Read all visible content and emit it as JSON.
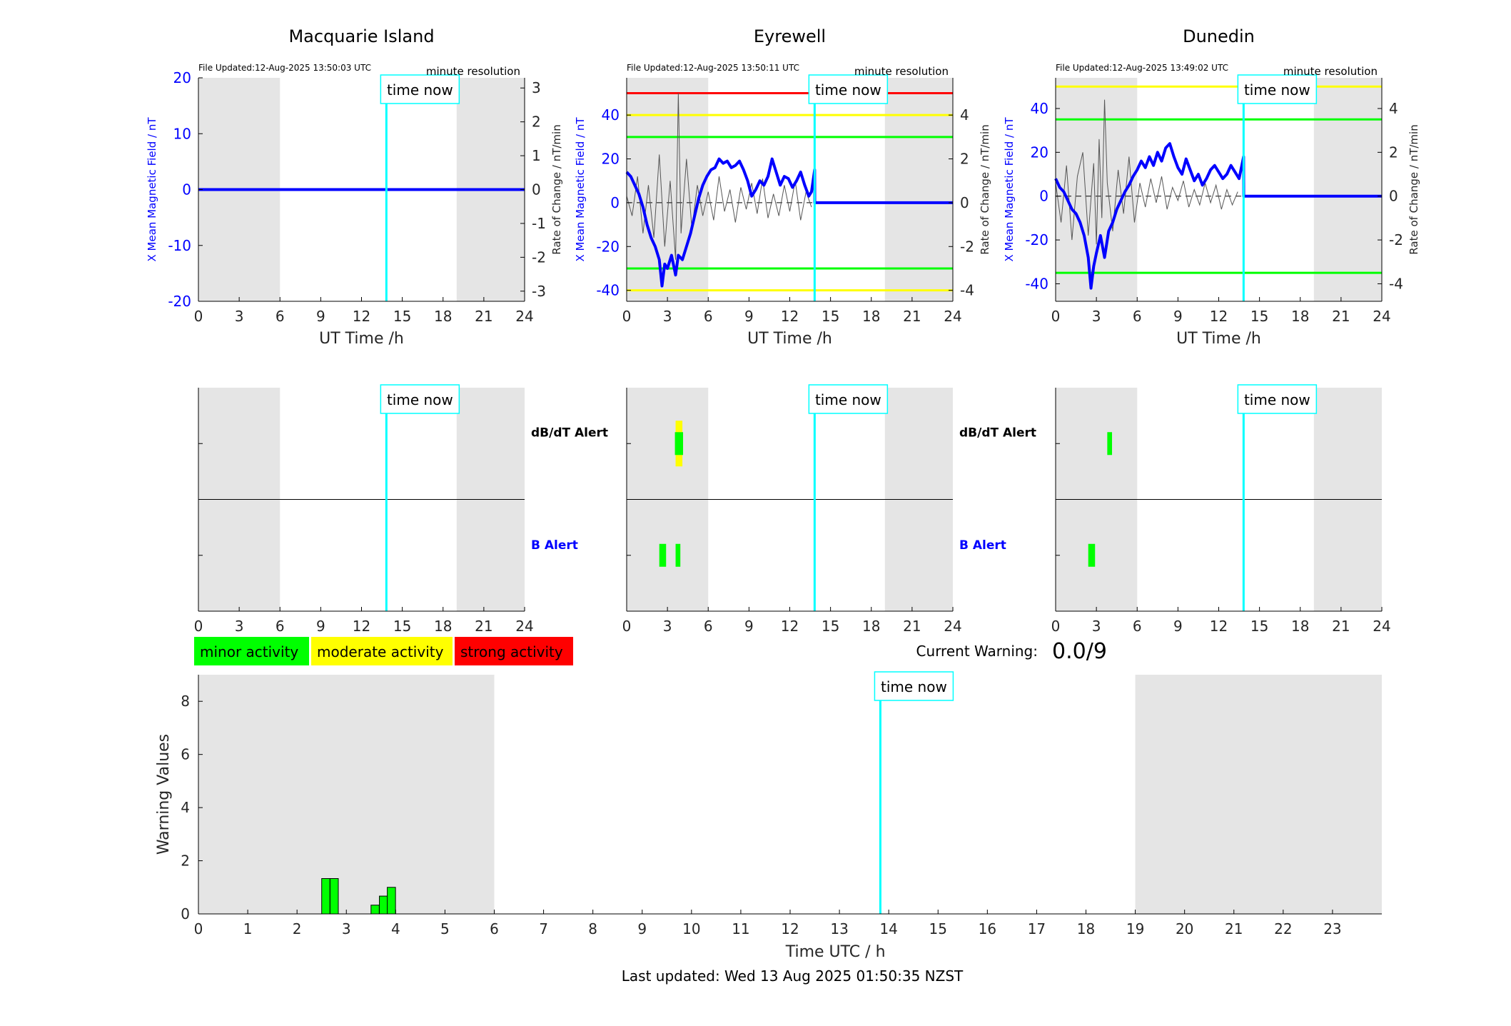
{
  "footer": {
    "last_updated": "Last updated: Wed 13 Aug 2025 01:50:35 NZST"
  },
  "current_warning": {
    "label": "Current Warning:",
    "value": "0.0/9"
  },
  "legend": [
    {
      "label": "minor activity",
      "color": "#00ff00"
    },
    {
      "label": "moderate activity",
      "color": "#ffff00"
    },
    {
      "label": "strong activity",
      "color": "#ff0000"
    }
  ],
  "colors": {
    "field": "#0000ff",
    "time_now": "#00ffff",
    "night": "#e5e5e5",
    "green": "#00ff00",
    "yellow": "#ffff00",
    "red": "#ff0000"
  },
  "chart_data": [
    {
      "id": "macquarie",
      "type": "line",
      "title": "Macquarie Island",
      "file_updated": "File Updated:12-Aug-2025 13:50:03 UTC",
      "resolution": "minute resolution",
      "time_now_label": "time now",
      "xlabel": "UT Time /h",
      "ylabel_left": "X Mean Magnetic Field / nT",
      "ylabel_right": "Rate of Change / nT/min",
      "xlim": [
        0,
        24
      ],
      "xticks": [
        0,
        3,
        6,
        9,
        12,
        15,
        18,
        21,
        24
      ],
      "ylim_left": [
        -20,
        20
      ],
      "yticks_left": [
        -20,
        -10,
        0,
        10,
        20
      ],
      "ylim_right": [
        -3.3,
        3.3
      ],
      "yticks_right": [
        -3,
        -2,
        -1,
        0,
        1,
        2,
        3
      ],
      "night": [
        [
          0,
          6
        ],
        [
          19,
          24
        ]
      ],
      "time_now": 13.83,
      "threshold_lines": [],
      "x_field": [
        0,
        24
      ],
      "field": [
        0,
        0
      ],
      "x_rate": [
        0,
        24
      ],
      "rate": [
        0,
        0
      ]
    },
    {
      "id": "eyrewell",
      "type": "line",
      "title": "Eyrewell",
      "file_updated": "File Updated:12-Aug-2025 13:50:11 UTC",
      "resolution": "minute resolution",
      "time_now_label": "time now",
      "xlabel": "UT Time /h",
      "ylabel_left": "X Mean Magnetic Field / nT",
      "ylabel_right": "Rate of Change / nT/min",
      "xlim": [
        0,
        24
      ],
      "xticks": [
        0,
        3,
        6,
        9,
        12,
        15,
        18,
        21,
        24
      ],
      "ylim_left": [
        -45,
        57
      ],
      "yticks_left": [
        -40,
        -20,
        0,
        20,
        40
      ],
      "ylim_right": [
        -4.5,
        5.7
      ],
      "yticks_right": [
        -4,
        -2,
        0,
        2,
        4
      ],
      "night": [
        [
          0,
          6
        ],
        [
          19,
          24
        ]
      ],
      "time_now": 13.83,
      "threshold_lines": [
        {
          "y": 50,
          "color": "red"
        },
        {
          "y": 40,
          "color": "yellow"
        },
        {
          "y": 30,
          "color": "green"
        },
        {
          "y": -30,
          "color": "green"
        },
        {
          "y": -40,
          "color": "yellow"
        }
      ],
      "x_field": [
        0,
        0.3,
        0.6,
        0.9,
        1.2,
        1.5,
        1.8,
        2.1,
        2.4,
        2.6,
        2.8,
        3.0,
        3.3,
        3.6,
        3.8,
        4.1,
        4.4,
        4.7,
        5.0,
        5.3,
        5.6,
        5.9,
        6.2,
        6.5,
        6.8,
        7.1,
        7.4,
        7.7,
        8.0,
        8.3,
        8.6,
        8.9,
        9.2,
        9.5,
        9.8,
        10.1,
        10.4,
        10.7,
        11.0,
        11.3,
        11.6,
        11.9,
        12.2,
        12.5,
        12.8,
        13.1,
        13.4,
        13.6,
        13.83,
        13.84,
        24
      ],
      "field": [
        14,
        12,
        8,
        4,
        -2,
        -10,
        -16,
        -20,
        -26,
        -38,
        -28,
        -30,
        -24,
        -33,
        -24,
        -26,
        -20,
        -14,
        -6,
        2,
        8,
        12,
        15,
        16,
        20,
        18,
        19,
        16,
        17,
        19,
        15,
        10,
        3,
        6,
        10,
        8,
        12,
        20,
        14,
        8,
        12,
        11,
        7,
        10,
        14,
        8,
        3,
        5,
        15,
        0,
        0
      ],
      "x_rate": [
        0,
        0.4,
        0.8,
        1.2,
        1.6,
        2.0,
        2.4,
        2.8,
        3.2,
        3.6,
        3.8,
        4.0,
        4.4,
        4.8,
        5.2,
        5.6,
        6.0,
        6.4,
        6.8,
        7.2,
        7.6,
        8.0,
        8.4,
        8.8,
        9.2,
        9.6,
        10.0,
        10.4,
        10.8,
        11.2,
        11.6,
        12.0,
        12.4,
        12.8,
        13.2,
        13.6
      ],
      "rate": [
        0.3,
        -0.6,
        1.2,
        -1.4,
        0.8,
        -1.6,
        2.2,
        -2.0,
        1.0,
        -2.6,
        5.0,
        -1.4,
        2.0,
        -1.2,
        0.8,
        -0.6,
        0.5,
        -0.8,
        1.2,
        -0.4,
        0.6,
        -0.9,
        0.7,
        -0.3,
        0.9,
        -0.5,
        1.1,
        -0.7,
        0.4,
        -0.6,
        0.8,
        -0.4,
        1.0,
        -0.8,
        0.5,
        -0.2
      ]
    },
    {
      "id": "dunedin",
      "type": "line",
      "title": "Dunedin",
      "file_updated": "File Updated:12-Aug-2025 13:49:02 UTC",
      "resolution": "minute resolution",
      "time_now_label": "time now",
      "xlabel": "UT Time /h",
      "ylabel_left": "X Mean Magnetic Field / nT",
      "ylabel_right": "Rate of Change / nT/min",
      "xlim": [
        0,
        24
      ],
      "xticks": [
        0,
        3,
        6,
        9,
        12,
        15,
        18,
        21,
        24
      ],
      "ylim_left": [
        -48,
        54
      ],
      "yticks_left": [
        -40,
        -20,
        0,
        20,
        40
      ],
      "ylim_right": [
        -4.8,
        5.4
      ],
      "yticks_right": [
        -4,
        -2,
        0,
        2,
        4
      ],
      "night": [
        [
          0,
          6
        ],
        [
          19,
          24
        ]
      ],
      "time_now": 13.83,
      "threshold_lines": [
        {
          "y": 50,
          "color": "yellow"
        },
        {
          "y": 35,
          "color": "green"
        },
        {
          "y": -35,
          "color": "green"
        }
      ],
      "x_field": [
        0,
        0.3,
        0.6,
        0.9,
        1.2,
        1.5,
        1.8,
        2.1,
        2.4,
        2.6,
        2.8,
        3.0,
        3.3,
        3.6,
        3.9,
        4.2,
        4.5,
        4.8,
        5.1,
        5.4,
        5.7,
        6.0,
        6.3,
        6.6,
        6.9,
        7.2,
        7.5,
        7.8,
        8.1,
        8.4,
        8.7,
        9.0,
        9.3,
        9.6,
        9.9,
        10.2,
        10.5,
        10.8,
        11.1,
        11.4,
        11.7,
        12.0,
        12.3,
        12.6,
        12.9,
        13.2,
        13.5,
        13.83,
        13.84,
        24
      ],
      "field": [
        8,
        4,
        2,
        -2,
        -6,
        -8,
        -12,
        -18,
        -28,
        -42,
        -32,
        -26,
        -18,
        -28,
        -16,
        -12,
        -6,
        -2,
        2,
        5,
        9,
        12,
        16,
        13,
        18,
        14,
        20,
        16,
        22,
        24,
        18,
        13,
        10,
        17,
        12,
        7,
        10,
        5,
        8,
        12,
        14,
        11,
        8,
        10,
        14,
        11,
        8,
        18,
        0,
        0
      ],
      "x_rate": [
        0,
        0.4,
        0.8,
        1.2,
        1.6,
        2.0,
        2.4,
        2.8,
        3.0,
        3.2,
        3.4,
        3.6,
        3.8,
        4.2,
        4.6,
        5.0,
        5.4,
        5.8,
        6.2,
        6.6,
        7.0,
        7.4,
        7.8,
        8.2,
        8.6,
        9.0,
        9.4,
        9.8,
        10.2,
        10.6,
        11.0,
        11.4,
        11.8,
        12.2,
        12.6,
        13.0,
        13.4
      ],
      "rate": [
        0.6,
        -1.2,
        1.4,
        -2.0,
        0.9,
        2.0,
        -1.8,
        1.5,
        -2.2,
        2.6,
        -1.0,
        4.4,
        0.6,
        -1.6,
        1.2,
        -0.8,
        1.8,
        -1.2,
        0.6,
        -0.5,
        0.8,
        -0.3,
        0.9,
        -0.6,
        0.4,
        -0.2,
        0.7,
        -0.5,
        0.3,
        -0.4,
        0.6,
        -0.3,
        0.5,
        -0.6,
        0.3,
        -0.4,
        0.2
      ]
    },
    {
      "id": "macquarie-alerts",
      "type": "bar",
      "labels": [
        "dB/dT Alert",
        "B Alert"
      ],
      "time_now_label": "time now",
      "xlim": [
        0,
        24
      ],
      "xticks": [
        0,
        3,
        6,
        9,
        12,
        15,
        18,
        21,
        24
      ],
      "night": [
        [
          0,
          6
        ],
        [
          19,
          24
        ]
      ],
      "time_now": 13.83,
      "dbdt_alerts": [],
      "b_alerts": []
    },
    {
      "id": "eyrewell-alerts",
      "type": "bar",
      "labels": [
        "dB/dT Alert",
        "B Alert"
      ],
      "time_now_label": "time now",
      "xlim": [
        0,
        24
      ],
      "xticks": [
        0,
        3,
        6,
        9,
        12,
        15,
        18,
        21,
        24
      ],
      "night": [
        [
          0,
          6
        ],
        [
          19,
          24
        ]
      ],
      "time_now": 13.83,
      "dbdt_alerts": [
        {
          "t0": 3.6,
          "t1": 4.1,
          "level": 2,
          "color": "yellow"
        },
        {
          "t0": 3.55,
          "t1": 4.15,
          "level": 1,
          "color": "green"
        }
      ],
      "b_alerts": [
        {
          "t0": 2.4,
          "t1": 2.9,
          "level": 1,
          "color": "green"
        },
        {
          "t0": 3.6,
          "t1": 3.95,
          "level": 1,
          "color": "green"
        }
      ]
    },
    {
      "id": "dunedin-alerts",
      "type": "bar",
      "labels": [
        "dB/dT Alert",
        "B Alert"
      ],
      "time_now_label": "time now",
      "xlim": [
        0,
        24
      ],
      "xticks": [
        0,
        3,
        6,
        9,
        12,
        15,
        18,
        21,
        24
      ],
      "night": [
        [
          0,
          6
        ],
        [
          19,
          24
        ]
      ],
      "time_now": 13.83,
      "dbdt_alerts": [
        {
          "t0": 3.8,
          "t1": 4.15,
          "level": 1,
          "color": "green"
        }
      ],
      "b_alerts": [
        {
          "t0": 2.4,
          "t1": 2.9,
          "level": 1,
          "color": "green"
        }
      ]
    },
    {
      "id": "warning-values",
      "type": "bar",
      "xlabel": "Time UTC / h",
      "ylabel": "Warning Values",
      "time_now_label": "time now",
      "xlim": [
        0,
        24
      ],
      "xticks": [
        0,
        1,
        2,
        3,
        4,
        5,
        6,
        7,
        8,
        9,
        10,
        11,
        12,
        13,
        14,
        15,
        16,
        17,
        18,
        19,
        20,
        21,
        22,
        23
      ],
      "ylim": [
        0,
        9
      ],
      "yticks": [
        0,
        2,
        4,
        6,
        8
      ],
      "night": [
        [
          0,
          6
        ],
        [
          19,
          24
        ]
      ],
      "time_now": 13.83,
      "bars": [
        {
          "x": 2.5,
          "value": 1.33
        },
        {
          "x": 2.67,
          "value": 1.33
        },
        {
          "x": 3.5,
          "value": 0.33
        },
        {
          "x": 3.67,
          "value": 0.67
        },
        {
          "x": 3.83,
          "value": 1.0
        }
      ],
      "bar_width": 0.167
    }
  ]
}
